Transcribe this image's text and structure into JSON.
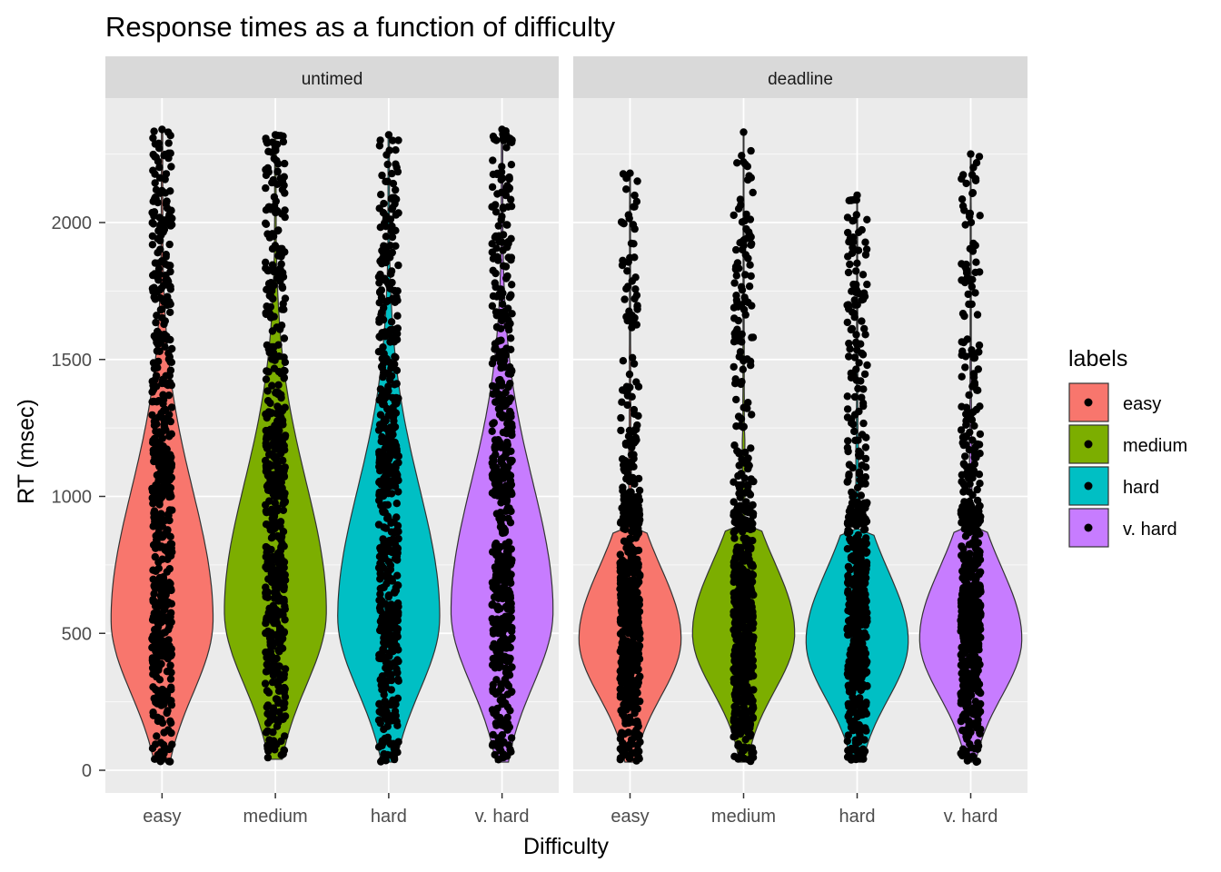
{
  "chart_data": {
    "type": "violin",
    "title": "Response times as a function of difficulty",
    "xlabel": "Difficulty",
    "ylabel": "RT (msec)",
    "categories": [
      "easy",
      "medium",
      "hard",
      "v. hard"
    ],
    "y_ticks": [
      0,
      500,
      1000,
      1500,
      2000
    ],
    "ylim": [
      -90,
      2450
    ],
    "grid": true,
    "facets": [
      "untimed",
      "deadline"
    ],
    "legend": {
      "title": "labels",
      "position": "right",
      "entries": [
        "easy",
        "medium",
        "hard",
        "v. hard"
      ],
      "colors": [
        "#F8766D",
        "#7CAE00",
        "#00BFC4",
        "#C77CFF"
      ]
    },
    "series": [
      {
        "facet": "untimed",
        "violins": [
          {
            "category": "easy",
            "min": 30,
            "max": 2340,
            "mode": 550
          },
          {
            "category": "medium",
            "min": 40,
            "max": 2320,
            "mode": 580
          },
          {
            "category": "hard",
            "min": 30,
            "max": 2320,
            "mode": 560
          },
          {
            "category": "v. hard",
            "min": 30,
            "max": 2340,
            "mode": 580
          }
        ]
      },
      {
        "facet": "deadline",
        "violins": [
          {
            "category": "easy",
            "min": 30,
            "max": 2180,
            "mode": 480
          },
          {
            "category": "medium",
            "min": 30,
            "max": 2330,
            "mode": 500
          },
          {
            "category": "hard",
            "min": 30,
            "max": 2100,
            "mode": 470
          },
          {
            "category": "v. hard",
            "min": 30,
            "max": 2250,
            "mode": 480
          }
        ]
      }
    ]
  }
}
